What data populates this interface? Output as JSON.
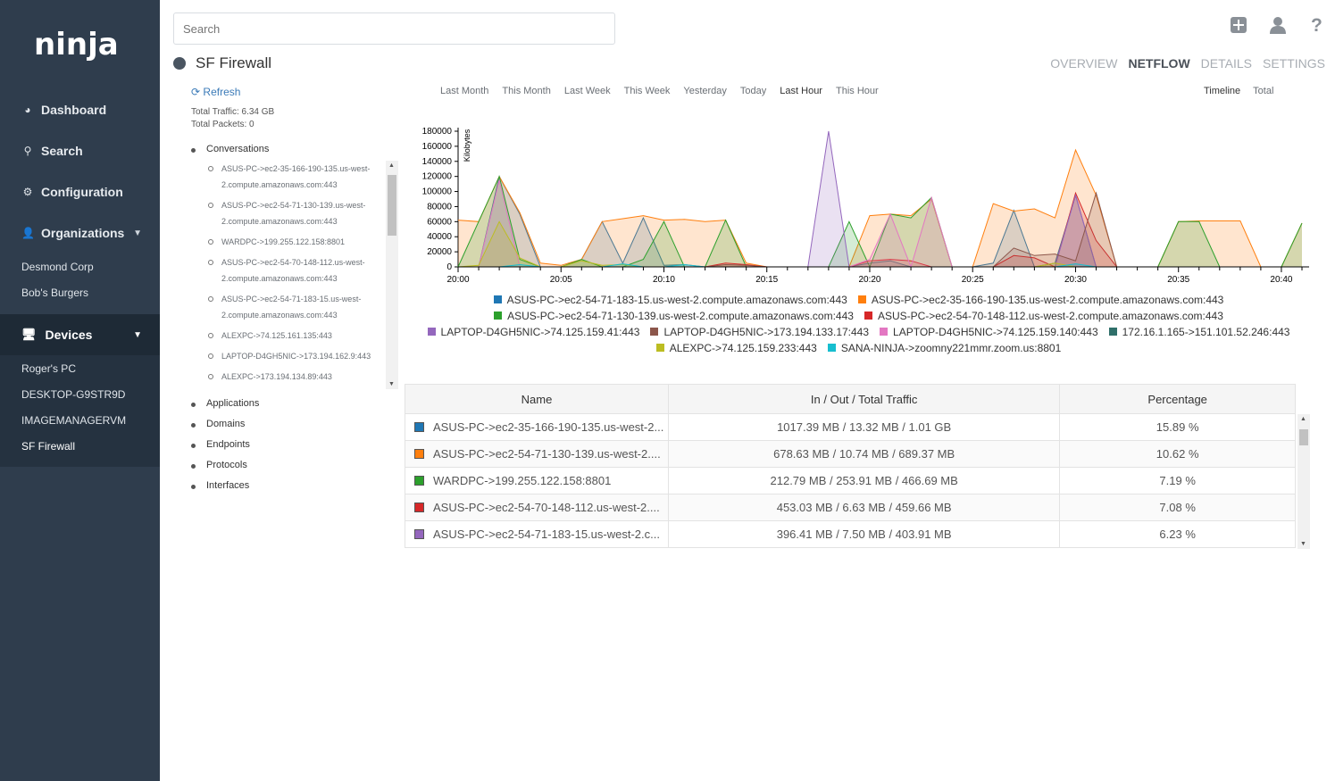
{
  "app": {
    "logo": "ninja"
  },
  "sidebar": {
    "nav": [
      {
        "label": "Dashboard",
        "icon": "dashboard-icon"
      },
      {
        "label": "Search",
        "icon": "search-icon"
      },
      {
        "label": "Configuration",
        "icon": "gear-icon"
      },
      {
        "label": "Organizations",
        "icon": "user-icon"
      }
    ],
    "organizations": [
      "Desmond Corp",
      "Bob's Burgers"
    ],
    "devices_label": "Devices",
    "devices": [
      "Roger's PC",
      "DESKTOP-G9STR9D",
      "IMAGEMANAGERVM",
      "SF Firewall"
    ]
  },
  "header": {
    "search_placeholder": "Search",
    "title": "SF Firewall",
    "tabs": [
      "OVERVIEW",
      "NETFLOW",
      "DETAILS",
      "SETTINGS"
    ],
    "active_tab": "NETFLOW"
  },
  "left_panel": {
    "refresh": "Refresh",
    "total_traffic": "Total Traffic: 6.34 GB",
    "total_packets": "Total Packets: 0",
    "conversations_label": "Conversations",
    "conversations": [
      "ASUS-PC->ec2-35-166-190-135.us-west-2.compute.amazonaws.com:443",
      "ASUS-PC->ec2-54-71-130-139.us-west-2.compute.amazonaws.com:443",
      "WARDPC->199.255.122.158:8801",
      "ASUS-PC->ec2-54-70-148-112.us-west-2.compute.amazonaws.com:443",
      "ASUS-PC->ec2-54-71-183-15.us-west-2.compute.amazonaws.com:443",
      "ALEXPC->74.125.161.135:443",
      "LAPTOP-D4GH5NIC->173.194.162.9:443",
      "ALEXPC->173.194.134.89:443"
    ],
    "other_sections": [
      "Applications",
      "Domains",
      "Endpoints",
      "Protocols",
      "Interfaces"
    ]
  },
  "range_options": [
    "Last Month",
    "This Month",
    "Last Week",
    "This Week",
    "Yesterday",
    "Today",
    "Last Hour",
    "This Hour"
  ],
  "active_range": "Last Hour",
  "view_options": [
    "Timeline",
    "Total"
  ],
  "active_view": "Timeline",
  "chart_data": {
    "type": "area",
    "ylabel": "Kilobytes",
    "ylim": [
      0,
      180000
    ],
    "yticks": [
      0,
      20000,
      40000,
      60000,
      80000,
      100000,
      120000,
      140000,
      160000,
      180000
    ],
    "xticks": [
      "20:00",
      "20:05",
      "20:10",
      "20:15",
      "20:20",
      "20:25",
      "20:30",
      "20:35",
      "20:40"
    ],
    "x_minutes": [
      0,
      1,
      2,
      3,
      4,
      5,
      6,
      7,
      8,
      9,
      10,
      11,
      12,
      13,
      14,
      15,
      16,
      17,
      18,
      19,
      20,
      21,
      22,
      23,
      24,
      25,
      26,
      27,
      28,
      29,
      30,
      31,
      32,
      33,
      34,
      35,
      36,
      37,
      38,
      39,
      40,
      41
    ],
    "series": [
      {
        "name": "ASUS-PC->ec2-54-71-183-15.us-west-2.compute.amazonaws.com:443",
        "color": "#1f77b4",
        "values": [
          0,
          0,
          120000,
          70000,
          0,
          0,
          10000,
          60000,
          5000,
          65000,
          2000,
          3000,
          0,
          0,
          0,
          0,
          0,
          0,
          0,
          0,
          5000,
          8000,
          0,
          0,
          0,
          0,
          5000,
          75000,
          0,
          5000,
          95000,
          0,
          0,
          0,
          0,
          0,
          0,
          0,
          0,
          0,
          0,
          0
        ]
      },
      {
        "name": "ASUS-PC->ec2-35-166-190-135.us-west-2.compute.amazonaws.com:443",
        "color": "#ff7f0e",
        "values": [
          62000,
          60000,
          120000,
          72000,
          5000,
          2000,
          10000,
          60000,
          64000,
          68000,
          62000,
          63000,
          60000,
          62000,
          5000,
          0,
          0,
          0,
          0,
          0,
          68000,
          70000,
          68000,
          90000,
          0,
          0,
          84000,
          74000,
          77000,
          65000,
          155000,
          95000,
          0,
          0,
          0,
          60000,
          61000,
          61000,
          61000,
          0,
          0,
          58000
        ]
      },
      {
        "name": "ASUS-PC->ec2-54-71-130-139.us-west-2.compute.amazonaws.com:443",
        "color": "#2ca02c",
        "values": [
          0,
          60000,
          120000,
          10000,
          0,
          0,
          10000,
          0,
          0,
          10000,
          60000,
          0,
          0,
          62000,
          0,
          0,
          0,
          0,
          0,
          60000,
          0,
          70000,
          65000,
          92000,
          0,
          0,
          0,
          0,
          0,
          0,
          0,
          0,
          0,
          0,
          0,
          60000,
          60000,
          0,
          0,
          0,
          0,
          58000
        ]
      },
      {
        "name": "ASUS-PC->ec2-54-70-148-112.us-west-2.compute.amazonaws.com:443",
        "color": "#d62728",
        "values": [
          0,
          0,
          0,
          0,
          0,
          0,
          0,
          0,
          0,
          0,
          0,
          0,
          0,
          5000,
          3000,
          0,
          0,
          0,
          0,
          0,
          8000,
          10000,
          8000,
          0,
          0,
          0,
          0,
          15000,
          12000,
          0,
          98000,
          35000,
          0,
          0,
          0,
          0,
          0,
          0,
          0,
          0,
          0,
          0
        ]
      },
      {
        "name": "LAPTOP-D4GH5NIC->74.125.159.41:443",
        "color": "#9467bd",
        "values": [
          0,
          0,
          0,
          0,
          0,
          0,
          0,
          0,
          0,
          0,
          0,
          0,
          0,
          0,
          0,
          0,
          0,
          0,
          180000,
          0,
          0,
          0,
          0,
          0,
          0,
          0,
          0,
          0,
          0,
          0,
          95000,
          0,
          0,
          0,
          0,
          0,
          0,
          0,
          0,
          0,
          0,
          0
        ]
      },
      {
        "name": "LAPTOP-D4GH5NIC->173.194.133.17:443",
        "color": "#8c564b",
        "values": [
          0,
          0,
          0,
          0,
          0,
          0,
          0,
          0,
          0,
          0,
          0,
          0,
          0,
          3000,
          2000,
          0,
          0,
          0,
          0,
          0,
          0,
          0,
          0,
          0,
          0,
          0,
          0,
          25000,
          15000,
          17000,
          8000,
          98000,
          0,
          0,
          0,
          0,
          0,
          0,
          0,
          0,
          0,
          0
        ]
      },
      {
        "name": "LAPTOP-D4GH5NIC->74.125.159.140:443",
        "color": "#e377c2",
        "values": [
          0,
          0,
          115000,
          0,
          0,
          0,
          0,
          0,
          0,
          0,
          0,
          0,
          0,
          0,
          0,
          0,
          0,
          0,
          0,
          0,
          10000,
          70000,
          0,
          92000,
          0,
          0,
          0,
          0,
          0,
          0,
          0,
          0,
          0,
          0,
          0,
          0,
          0,
          0,
          0,
          0,
          0,
          0
        ]
      },
      {
        "name": "172.16.1.165->151.101.52.246:443",
        "color": "#2f6f6a",
        "values": [
          0,
          0,
          0,
          0,
          0,
          0,
          0,
          0,
          0,
          0,
          0,
          0,
          0,
          0,
          0,
          0,
          0,
          0,
          0,
          0,
          0,
          0,
          0,
          0,
          0,
          0,
          0,
          0,
          0,
          0,
          0,
          0,
          0,
          0,
          0,
          0,
          0,
          0,
          0,
          0,
          0,
          0
        ]
      },
      {
        "name": "ALEXPC->74.125.159.233:443",
        "color": "#bcbd22",
        "values": [
          0,
          2000,
          60000,
          12000,
          0,
          0,
          8000,
          2000,
          3000,
          0,
          0,
          0,
          0,
          0,
          0,
          0,
          0,
          0,
          0,
          0,
          0,
          0,
          0,
          0,
          0,
          0,
          0,
          0,
          0,
          5000,
          0,
          0,
          0,
          0,
          0,
          0,
          0,
          0,
          0,
          0,
          0,
          0
        ]
      },
      {
        "name": "SANA-NINJA->zoomny221mmr.zoom.us:8801",
        "color": "#17becf",
        "values": [
          0,
          0,
          0,
          3000,
          0,
          0,
          0,
          0,
          4000,
          0,
          0,
          3000,
          0,
          0,
          0,
          0,
          0,
          0,
          0,
          0,
          0,
          0,
          0,
          0,
          0,
          0,
          0,
          0,
          0,
          0,
          4000,
          0,
          0,
          0,
          0,
          0,
          0,
          0,
          0,
          0,
          0,
          0
        ]
      }
    ]
  },
  "table": {
    "headers": [
      "Name",
      "In / Out / Total Traffic",
      "Percentage"
    ],
    "rows": [
      {
        "name": "ASUS-PC->ec2-35-166-190-135.us-west-2...",
        "traffic": "1017.39 MB / 13.32 MB / 1.01 GB",
        "pct": "15.89 %",
        "color": "#1f77b4"
      },
      {
        "name": "ASUS-PC->ec2-54-71-130-139.us-west-2....",
        "traffic": "678.63 MB / 10.74 MB / 689.37 MB",
        "pct": "10.62 %",
        "color": "#ff7f0e"
      },
      {
        "name": "WARDPC->199.255.122.158:8801",
        "traffic": "212.79 MB / 253.91 MB / 466.69 MB",
        "pct": "7.19 %",
        "color": "#2ca02c"
      },
      {
        "name": "ASUS-PC->ec2-54-70-148-112.us-west-2....",
        "traffic": "453.03 MB / 6.63 MB / 459.66 MB",
        "pct": "7.08 %",
        "color": "#d62728"
      },
      {
        "name": "ASUS-PC->ec2-54-71-183-15.us-west-2.c...",
        "traffic": "396.41 MB / 7.50 MB / 403.91 MB",
        "pct": "6.23 %",
        "color": "#9467bd"
      }
    ]
  }
}
